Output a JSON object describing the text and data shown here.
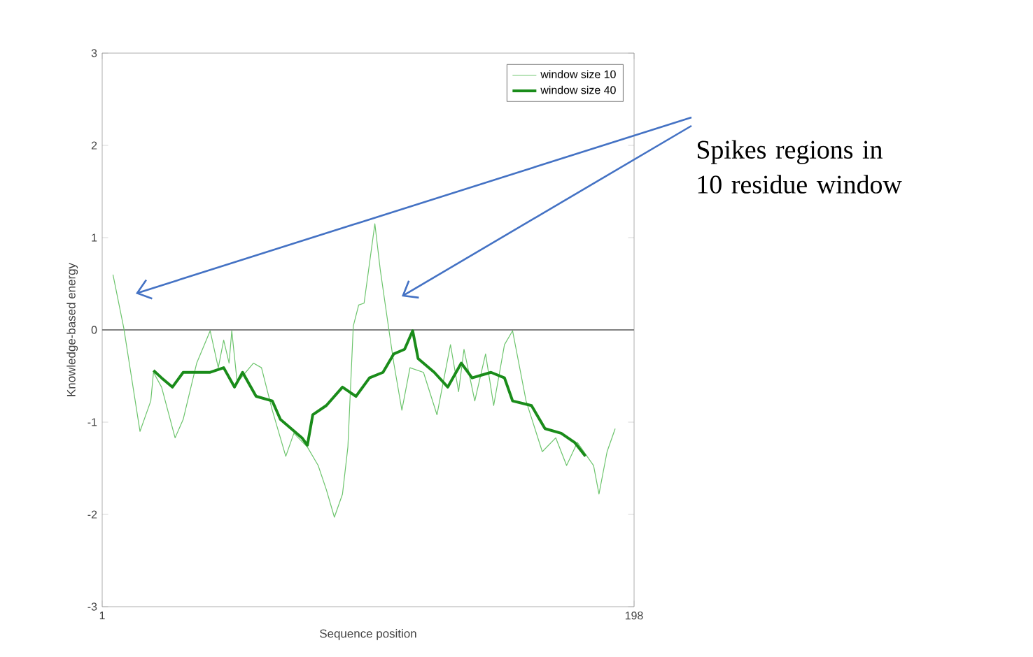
{
  "chart_data": {
    "type": "line",
    "xlabel": "Sequence position",
    "ylabel": "Knowledge-based energy",
    "xlim": [
      1,
      198
    ],
    "xticks": [
      1,
      198
    ],
    "ylim": [
      -3,
      3
    ],
    "yticks": [
      -3,
      -2,
      -1,
      0,
      1,
      2,
      3
    ],
    "grid": false,
    "legend": "top right",
    "ref_lines": [
      {
        "axis": "y",
        "value": 0,
        "color": "#808080"
      }
    ],
    "annotations": [
      "Spikes regions in 10 residue window"
    ],
    "series": [
      {
        "name": "window size 10",
        "color": "#6cc46c",
        "x": [
          5,
          9,
          15,
          19,
          20,
          23,
          28,
          31,
          36,
          41,
          44,
          46,
          48,
          49,
          51,
          57,
          60,
          64,
          69,
          72,
          77,
          81,
          84,
          87,
          90,
          92,
          94,
          96,
          98,
          102,
          104,
          107,
          109,
          112,
          115,
          120,
          125,
          130,
          133,
          135,
          139,
          143,
          146,
          150,
          153,
          158,
          164,
          169,
          173,
          177,
          183,
          185,
          188,
          191
        ],
        "values": [
          0.6,
          0.02,
          -1.1,
          -0.77,
          -0.46,
          -0.62,
          -1.17,
          -0.97,
          -0.36,
          -0.01,
          -0.41,
          -0.11,
          -0.36,
          -0.01,
          -0.57,
          -0.36,
          -0.41,
          -0.87,
          -1.37,
          -1.12,
          -1.27,
          -1.47,
          -1.73,
          -2.03,
          -1.78,
          -1.27,
          0.04,
          0.27,
          0.29,
          1.15,
          0.65,
          0.04,
          -0.36,
          -0.87,
          -0.41,
          -0.46,
          -0.92,
          -0.16,
          -0.67,
          -0.21,
          -0.77,
          -0.26,
          -0.82,
          -0.16,
          -0.01,
          -0.77,
          -1.32,
          -1.17,
          -1.47,
          -1.22,
          -1.47,
          -1.78,
          -1.32,
          -1.07
        ]
      },
      {
        "name": "window size 40",
        "color": "#1a8c1a",
        "x": [
          20,
          23,
          27,
          31,
          36,
          41,
          46,
          50,
          53,
          58,
          64,
          67,
          71,
          75,
          77,
          79,
          84,
          90,
          95,
          100,
          105,
          109,
          113,
          116,
          118,
          124,
          129,
          134,
          138,
          145,
          150,
          153,
          160,
          165,
          171,
          176,
          180
        ],
        "values": [
          -0.44,
          -0.52,
          -0.62,
          -0.46,
          -0.46,
          -0.46,
          -0.41,
          -0.62,
          -0.46,
          -0.72,
          -0.77,
          -0.97,
          -1.07,
          -1.17,
          -1.25,
          -0.92,
          -0.82,
          -0.62,
          -0.72,
          -0.52,
          -0.46,
          -0.26,
          -0.21,
          -0.01,
          -0.31,
          -0.46,
          -0.62,
          -0.36,
          -0.52,
          -0.46,
          -0.52,
          -0.77,
          -0.82,
          -1.07,
          -1.12,
          -1.22,
          -1.37
        ]
      }
    ]
  }
}
